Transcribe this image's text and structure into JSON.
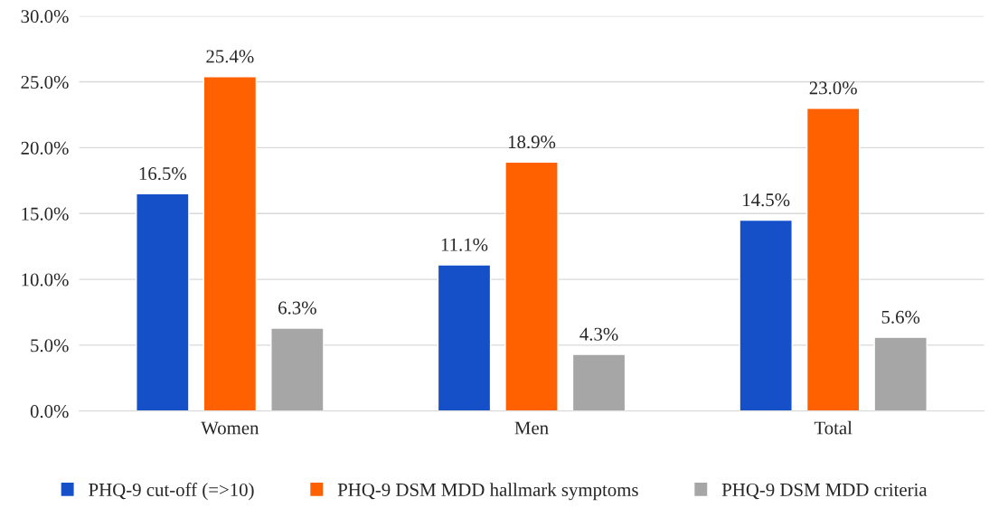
{
  "chart_data": {
    "type": "bar",
    "categories": [
      "Women",
      "Men",
      "Total"
    ],
    "series": [
      {
        "name": "PHQ-9 cut-off (=>10)",
        "color": "#1550c8",
        "values": [
          16.5,
          11.1,
          14.5
        ],
        "value_labels": [
          "16.5%",
          "11.1%",
          "14.5%"
        ]
      },
      {
        "name": "PHQ-9 DSM MDD hallmark symptoms",
        "color": "#ff6000",
        "values": [
          25.4,
          18.9,
          23.0
        ],
        "value_labels": [
          "25.4%",
          "18.9%",
          "23.0%"
        ]
      },
      {
        "name": "PHQ-9 DSM MDD criteria",
        "color": "#a6a6a6",
        "values": [
          6.3,
          4.3,
          5.6
        ],
        "value_labels": [
          "6.3%",
          "4.3%",
          "5.6%"
        ]
      }
    ],
    "ylim": [
      0,
      30
    ],
    "yticks": [
      {
        "value": 0,
        "label": "0.0%"
      },
      {
        "value": 5,
        "label": "5.0%"
      },
      {
        "value": 10,
        "label": "10.0%"
      },
      {
        "value": 15,
        "label": "15.0%"
      },
      {
        "value": 20,
        "label": "20.0%"
      },
      {
        "value": 25,
        "label": "25.0%"
      },
      {
        "value": 30,
        "label": "30.0%"
      }
    ],
    "grid": "y",
    "legend": "bottom"
  }
}
